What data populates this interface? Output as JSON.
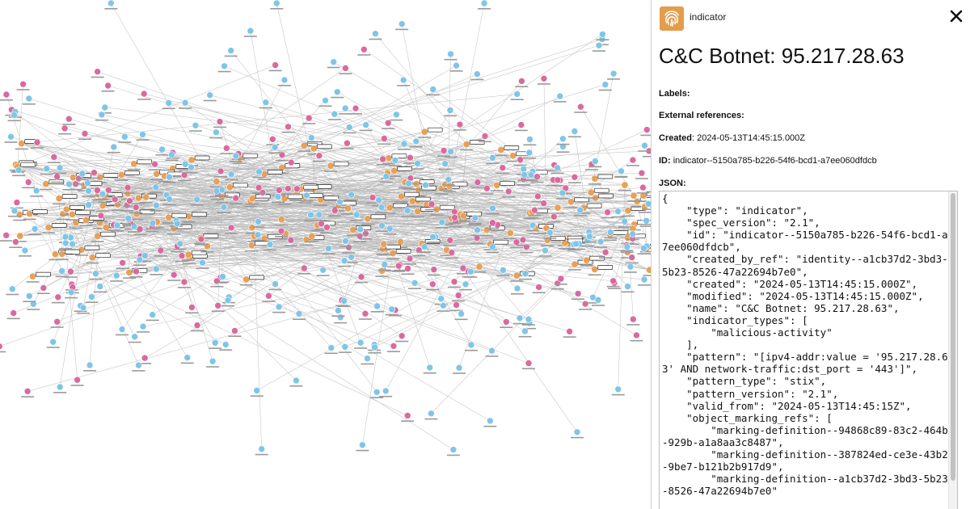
{
  "panel": {
    "type_label": "indicator",
    "type_icon": "fingerprint-icon",
    "close_icon": "close-icon",
    "accent_color": "#e39d4c",
    "title": "C&C Botnet: 95.217.28.63",
    "labels_label": "Labels:",
    "labels_value": "",
    "external_refs_label": "External references:",
    "external_refs_value": "",
    "created_label": "Created",
    "created_value": ": 2024-05-13T14:45:15.000Z",
    "id_label": "ID:",
    "id_value": " indicator--5150a785-b226-54f6-bcd1-a7ee060dfdcb",
    "json_label": "JSON:",
    "json_text": "{\n    \"type\": \"indicator\",\n    \"spec_version\": \"2.1\",\n    \"id\": \"indicator--5150a785-b226-54f6-bcd1-a7ee060dfdcb\",\n    \"created_by_ref\": \"identity--a1cb37d2-3bd3-5b23-8526-47a22694b7e0\",\n    \"created\": \"2024-05-13T14:45:15.000Z\",\n    \"modified\": \"2024-05-13T14:45:15.000Z\",\n    \"name\": \"C&C Botnet: 95.217.28.63\",\n    \"indicator_types\": [\n        \"malicious-activity\"\n    ],\n    \"pattern\": \"[ipv4-addr:value = '95.217.28.63' AND network-traffic:dst_port = '443']\",\n    \"pattern_type\": \"stix\",\n    \"pattern_version\": \"2.1\",\n    \"valid_from\": \"2024-05-13T14:45:15Z\",\n    \"object_marking_refs\": [\n        \"marking-definition--94868c89-83c2-464b-929b-a1a8aa3c8487\",\n        \"marking-definition--387824ed-ce3e-43b2-9be7-b121b2b917d9\",\n        \"marking-definition--a1cb37d2-3bd3-5b23-8526-47a22694b7e0\""
  },
  "graph": {
    "node_colors": {
      "network_traffic": "#7fc5e8",
      "ipv4_addr": "#d96a9e",
      "indicator": "#e6a15a"
    },
    "node_icons": {
      "network_traffic": "network-traffic-icon",
      "ipv4_addr": "ip-address-icon",
      "indicator": "fingerprint-icon"
    }
  }
}
